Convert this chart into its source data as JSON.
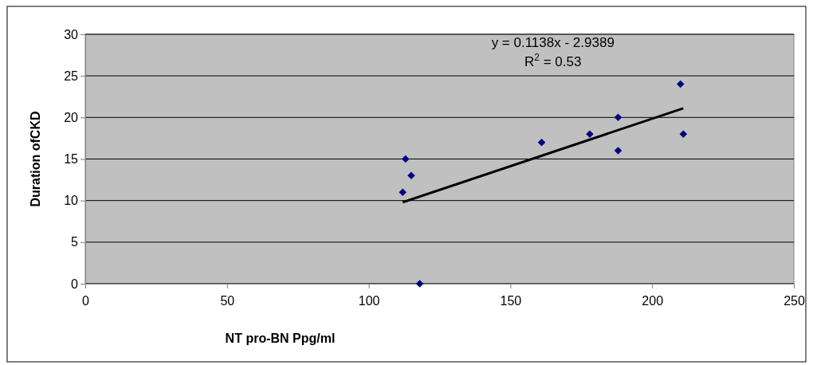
{
  "chart_data": {
    "type": "scatter",
    "xlabel": "NT pro-BN Ppg/ml",
    "ylabel": "Duration ofCKD",
    "xlim": [
      0,
      250
    ],
    "xticks": [
      0,
      50,
      100,
      150,
      200,
      250
    ],
    "ylim": [
      0,
      30
    ],
    "yticks": [
      0,
      5,
      10,
      15,
      20,
      25,
      30
    ],
    "grid": "y",
    "marker": "diamond",
    "series": [
      {
        "color": "#000080",
        "x": [
          113,
          112,
          115,
          118,
          161,
          178,
          188,
          188,
          210,
          211
        ],
        "values": [
          15,
          11,
          13,
          0,
          17,
          18,
          20,
          16,
          24,
          18
        ]
      },
      {
        "type": "line",
        "color": "#000000",
        "line_style": "solid",
        "marker": "none",
        "x": [
          112,
          211
        ],
        "values": [
          9.8,
          21.1
        ]
      }
    ],
    "annotations": [
      "y = 0.1138x - 2.9389",
      "R$^{2}$ = 0.53"
    ]
  }
}
